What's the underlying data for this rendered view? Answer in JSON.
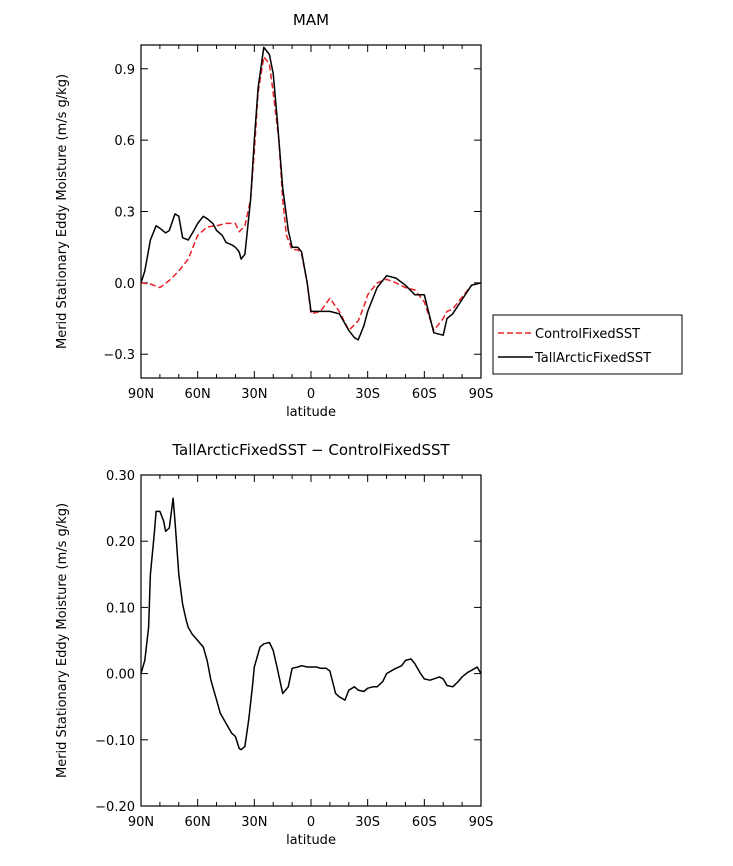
{
  "chart_data": [
    {
      "type": "line",
      "title": "MAM",
      "xlabel": "latitude",
      "ylabel": "Merid Stationary Eddy Moisture (m/s g/kg)",
      "xlim": [
        90,
        -90
      ],
      "ylim": [
        -0.4,
        1.0
      ],
      "x_ticks": [
        {
          "value": 90,
          "label": "90N"
        },
        {
          "value": 60,
          "label": "60N"
        },
        {
          "value": 30,
          "label": "30N"
        },
        {
          "value": 0,
          "label": "0"
        },
        {
          "value": -30,
          "label": "30S"
        },
        {
          "value": -60,
          "label": "60S"
        },
        {
          "value": -90,
          "label": "90S"
        }
      ],
      "y_ticks": [
        {
          "value": 0.9,
          "label": "0.9"
        },
        {
          "value": 0.6,
          "label": "0.6"
        },
        {
          "value": 0.3,
          "label": "0.3"
        },
        {
          "value": 0.0,
          "label": "0.0"
        },
        {
          "value": -0.3,
          "label": "−0.3"
        }
      ],
      "legend": {
        "placement": "right"
      },
      "series": [
        {
          "name": "ControlFixedSST",
          "color": "#e8202a",
          "dash": true,
          "x": [
            90,
            85,
            80,
            75,
            70,
            65,
            60,
            55,
            50,
            45,
            40,
            38,
            35,
            32,
            30,
            28,
            25,
            22,
            20,
            17,
            15,
            13,
            10,
            7,
            5,
            2,
            0,
            -5,
            -10,
            -15,
            -20,
            -25,
            -28,
            -30,
            -35,
            -40,
            -45,
            -50,
            -55,
            -60,
            -65,
            -70,
            -72,
            -75,
            -80,
            -85,
            -90
          ],
          "y": [
            0.0,
            -0.005,
            -0.02,
            0.01,
            0.05,
            0.1,
            0.2,
            0.235,
            0.24,
            0.25,
            0.25,
            0.215,
            0.24,
            0.35,
            0.55,
            0.8,
            0.95,
            0.92,
            0.8,
            0.6,
            0.35,
            0.2,
            0.14,
            0.14,
            0.12,
            0.0,
            -0.13,
            -0.12,
            -0.065,
            -0.12,
            -0.2,
            -0.16,
            -0.1,
            -0.05,
            0.0,
            0.015,
            0.0,
            -0.02,
            -0.03,
            -0.08,
            -0.2,
            -0.15,
            -0.12,
            -0.11,
            -0.06,
            -0.01,
            0.0
          ]
        },
        {
          "name": "TallArcticFixedSST",
          "color": "#000000",
          "dash": false,
          "x": [
            90,
            88,
            85,
            82,
            80,
            77,
            75,
            72,
            70,
            68,
            65,
            62,
            60,
            57,
            55,
            52,
            50,
            47,
            45,
            42,
            40,
            38,
            37,
            35,
            32,
            30,
            28,
            25,
            22,
            20,
            18,
            15,
            12,
            10,
            7,
            5,
            2,
            0,
            -5,
            -10,
            -15,
            -20,
            -23,
            -25,
            -28,
            -30,
            -35,
            -40,
            -45,
            -50,
            -55,
            -60,
            -65,
            -70,
            -72,
            -75,
            -80,
            -85,
            -90
          ],
          "y": [
            0.0,
            0.05,
            0.18,
            0.24,
            0.23,
            0.21,
            0.22,
            0.29,
            0.28,
            0.19,
            0.18,
            0.22,
            0.25,
            0.28,
            0.27,
            0.25,
            0.22,
            0.2,
            0.17,
            0.16,
            0.15,
            0.13,
            0.1,
            0.12,
            0.35,
            0.6,
            0.82,
            0.99,
            0.96,
            0.88,
            0.7,
            0.4,
            0.22,
            0.15,
            0.15,
            0.13,
            0.0,
            -0.12,
            -0.12,
            -0.12,
            -0.13,
            -0.2,
            -0.23,
            -0.24,
            -0.18,
            -0.12,
            -0.02,
            0.03,
            0.02,
            -0.01,
            -0.05,
            -0.05,
            -0.21,
            -0.22,
            -0.15,
            -0.13,
            -0.07,
            -0.01,
            0.0
          ]
        }
      ]
    },
    {
      "type": "line",
      "title": "TallArcticFixedSST − ControlFixedSST",
      "xlabel": "latitude",
      "ylabel": "Merid Stationary Eddy Moisture (m/s g/kg)",
      "xlim": [
        90,
        -90
      ],
      "ylim": [
        -0.2,
        0.3
      ],
      "x_ticks": [
        {
          "value": 90,
          "label": "90N"
        },
        {
          "value": 60,
          "label": "60N"
        },
        {
          "value": 30,
          "label": "30N"
        },
        {
          "value": 0,
          "label": "0"
        },
        {
          "value": -30,
          "label": "30S"
        },
        {
          "value": -60,
          "label": "60S"
        },
        {
          "value": -90,
          "label": "90S"
        }
      ],
      "y_ticks": [
        {
          "value": 0.3,
          "label": "0.30"
        },
        {
          "value": 0.2,
          "label": "0.20"
        },
        {
          "value": 0.1,
          "label": "0.10"
        },
        {
          "value": 0.0,
          "label": "0.00"
        },
        {
          "value": -0.1,
          "label": "−0.10"
        },
        {
          "value": -0.2,
          "label": "−0.20"
        }
      ],
      "series": [
        {
          "color": "#000000",
          "dash": false,
          "x": [
            90,
            88,
            86,
            85,
            83,
            82,
            80,
            78,
            77,
            75,
            73,
            72,
            70,
            68,
            66,
            65,
            63,
            60,
            57,
            55,
            53,
            50,
            48,
            45,
            42,
            40,
            38,
            37,
            35,
            33,
            31,
            30,
            27,
            25,
            22,
            20,
            18,
            15,
            12,
            10,
            7,
            5,
            2,
            0,
            -3,
            -5,
            -8,
            -10,
            -13,
            -15,
            -18,
            -20,
            -23,
            -25,
            -28,
            -30,
            -33,
            -35,
            -38,
            -40,
            -43,
            -45,
            -48,
            -50,
            -53,
            -55,
            -58,
            -60,
            -63,
            -65,
            -68,
            -70,
            -72,
            -75,
            -78,
            -80,
            -83,
            -85,
            -88,
            -90
          ],
          "y": [
            0.0,
            0.02,
            0.07,
            0.15,
            0.21,
            0.245,
            0.245,
            0.23,
            0.215,
            0.22,
            0.265,
            0.23,
            0.15,
            0.105,
            0.08,
            0.07,
            0.06,
            0.05,
            0.04,
            0.02,
            -0.01,
            -0.04,
            -0.06,
            -0.075,
            -0.09,
            -0.095,
            -0.113,
            -0.115,
            -0.11,
            -0.07,
            -0.02,
            0.01,
            0.04,
            0.045,
            0.047,
            0.035,
            0.01,
            -0.03,
            -0.02,
            0.008,
            0.01,
            0.012,
            0.01,
            0.01,
            0.01,
            0.008,
            0.008,
            0.004,
            -0.03,
            -0.035,
            -0.04,
            -0.025,
            -0.02,
            -0.025,
            -0.027,
            -0.022,
            -0.02,
            -0.02,
            -0.012,
            0.0,
            0.005,
            0.008,
            0.012,
            0.02,
            0.022,
            0.015,
            0.0,
            -0.008,
            -0.01,
            -0.008,
            -0.005,
            -0.008,
            -0.018,
            -0.02,
            -0.012,
            -0.005,
            0.002,
            0.005,
            0.01,
            0.0
          ]
        }
      ]
    }
  ]
}
